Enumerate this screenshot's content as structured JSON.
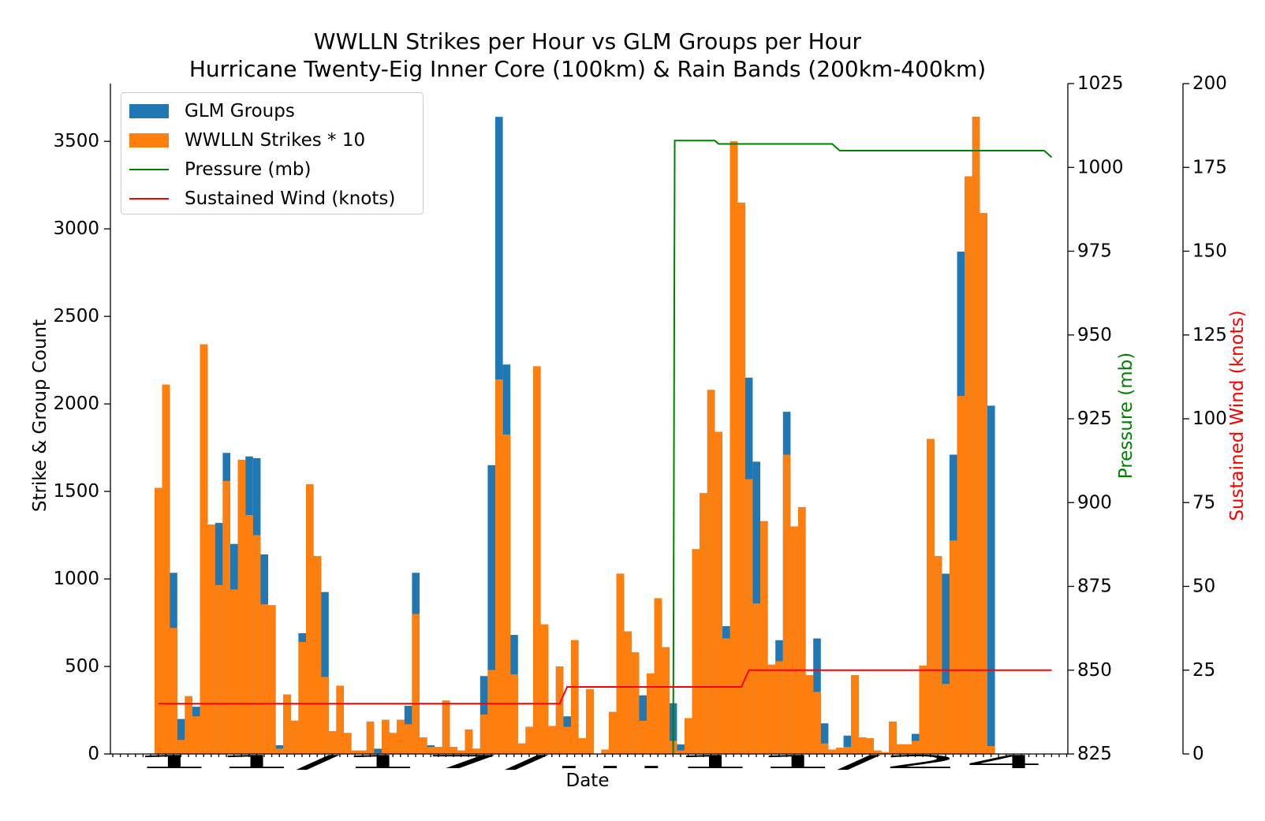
{
  "chart_data": {
    "type": "bar",
    "title": "WWLLN Strikes per Hour vs GLM Groups per Hour",
    "subtitle": "Hurricane Twenty-Eig Inner Core (100km) & Rain Bands (200km-400km)",
    "xlabel": "Date",
    "ylabel": "Strike & Group Count",
    "ylabel2": "Pressure (mb)",
    "ylabel3": "Sustained Wind (knots)",
    "ylim": [
      0,
      3830
    ],
    "ylim2": [
      825,
      1025
    ],
    "ylim3": [
      0,
      200
    ],
    "yticks": [
      0,
      500,
      1000,
      1500,
      2000,
      2500,
      3000,
      3500
    ],
    "yticks2": [
      825,
      850,
      875,
      900,
      925,
      950,
      975,
      1000,
      1025
    ],
    "yticks3": [
      0,
      25,
      50,
      75,
      100,
      125,
      150,
      175,
      200
    ],
    "xtick_text": "11/17/...11/24",
    "legend_position": "upper-left",
    "colors": {
      "glm": "#1f77b4",
      "wwlln": "#ff7f0e",
      "pressure": "#008000",
      "wind": "#ff0000"
    },
    "series": [
      {
        "name": "GLM Groups",
        "values": [
          1520,
          2110,
          1035,
          200,
          330,
          270,
          2340,
          1310,
          1320,
          1720,
          1200,
          1680,
          1700,
          1690,
          1140,
          850,
          50,
          340,
          190,
          690,
          1540,
          1130,
          925,
          130,
          390,
          120,
          20,
          20,
          185,
          30,
          195,
          120,
          195,
          275,
          1035,
          95,
          50,
          40,
          305,
          40,
          20,
          140,
          30,
          445,
          1650,
          3640,
          2225,
          680,
          60,
          155,
          2215,
          740,
          160,
          500,
          215,
          650,
          90,
          370,
          0,
          25,
          240,
          1030,
          700,
          580,
          335,
          460,
          890,
          610,
          290,
          55,
          205,
          1170,
          1490,
          2080,
          1840,
          730,
          3500,
          3150,
          2150,
          1670,
          1330,
          510,
          650,
          1955,
          1300,
          1410,
          450,
          660,
          175,
          25,
          35,
          105,
          450,
          95,
          90,
          20,
          10,
          185,
          55,
          55,
          115,
          505,
          1800,
          1130,
          1030,
          1710,
          2870,
          3300,
          3640,
          3090,
          1990
        ]
      },
      {
        "name": "WWLLN Strikes * 10",
        "values": [
          1520,
          2110,
          720,
          80,
          330,
          215,
          2340,
          1310,
          965,
          1560,
          940,
          1680,
          1365,
          1250,
          855,
          850,
          30,
          340,
          190,
          640,
          1540,
          1130,
          440,
          130,
          390,
          120,
          20,
          20,
          185,
          5,
          195,
          120,
          195,
          170,
          800,
          95,
          40,
          40,
          305,
          40,
          20,
          140,
          30,
          225,
          480,
          2140,
          1825,
          455,
          60,
          155,
          2215,
          740,
          160,
          500,
          155,
          650,
          90,
          370,
          0,
          25,
          240,
          1030,
          700,
          580,
          190,
          460,
          890,
          610,
          75,
          20,
          205,
          1170,
          1490,
          2080,
          1840,
          660,
          3500,
          3150,
          1570,
          860,
          1330,
          510,
          530,
          1710,
          1300,
          1410,
          450,
          355,
          60,
          25,
          35,
          40,
          450,
          95,
          90,
          20,
          10,
          185,
          55,
          55,
          75,
          505,
          1800,
          1130,
          400,
          1220,
          2045,
          3300,
          3640,
          3090,
          45
        ]
      }
    ],
    "pressure": {
      "name": "Pressure (mb)",
      "points": [
        [
          68,
          825
        ],
        [
          68.2,
          1008
        ],
        [
          73.5,
          1008
        ],
        [
          74,
          1007
        ],
        [
          89,
          1007
        ],
        [
          90,
          1005
        ],
        [
          117,
          1005
        ],
        [
          118,
          1003
        ]
      ]
    },
    "wind": {
      "name": "Sustained Wind (knots)",
      "points": [
        [
          0,
          15
        ],
        [
          53,
          15
        ],
        [
          54,
          20
        ],
        [
          77,
          20
        ],
        [
          78,
          25
        ],
        [
          118,
          25
        ]
      ]
    }
  }
}
